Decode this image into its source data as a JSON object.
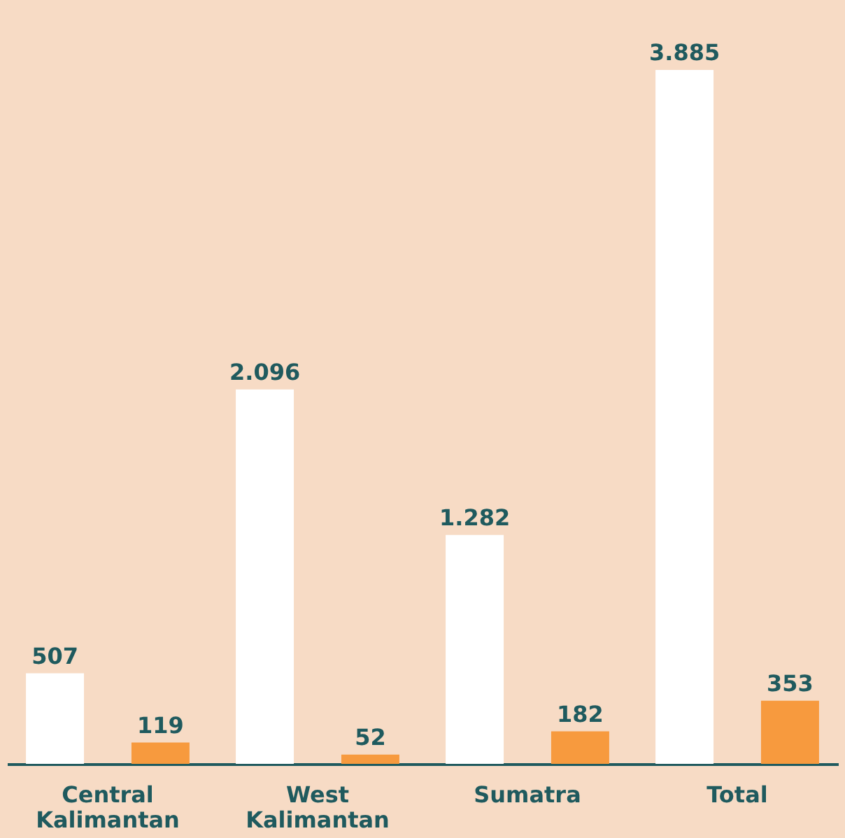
{
  "chart_data": {
    "type": "bar",
    "categories": [
      "Central Kalimantan",
      "West Kalimantan",
      "Sumatra",
      "Total"
    ],
    "series": [
      {
        "color": "#ffffff",
        "values": [
          507,
          2096,
          1282,
          3885
        ],
        "value_labels": [
          "507",
          "2.096",
          "1.282",
          "3.885"
        ]
      },
      {
        "color": "#f79a3e",
        "values": [
          119,
          52,
          182,
          353
        ],
        "value_labels": [
          "119",
          "52",
          "182",
          "353"
        ]
      }
    ]
  }
}
